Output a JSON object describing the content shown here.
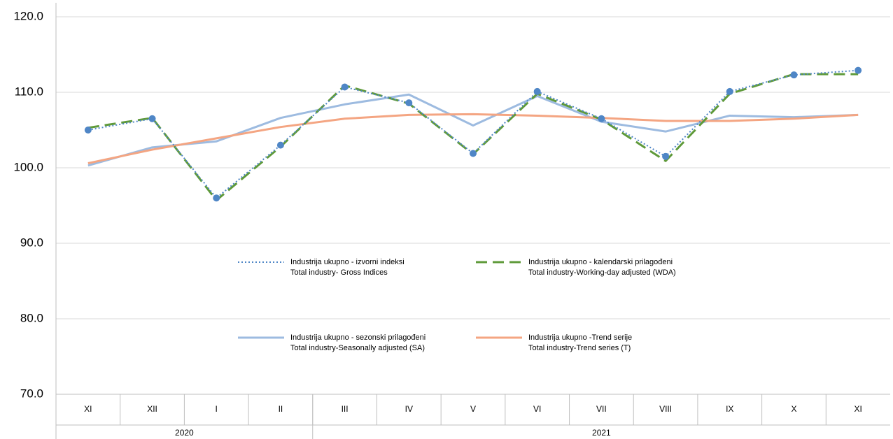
{
  "chart_data": {
    "type": "line",
    "categories": [
      "XI",
      "XII",
      "I",
      "II",
      "III",
      "IV",
      "V",
      "VI",
      "VII",
      "VIII",
      "IX",
      "X",
      "XI"
    ],
    "years": [
      "2020",
      null,
      null,
      null,
      "2021",
      null,
      null,
      null,
      null,
      null,
      null,
      null,
      null
    ],
    "ylim": [
      70,
      120
    ],
    "yticks": [
      {
        "value": 70,
        "label": "70.0"
      },
      {
        "value": 80,
        "label": "80.0"
      },
      {
        "value": 90,
        "label": "90.0"
      },
      {
        "value": 100,
        "label": "100.0"
      },
      {
        "value": 110,
        "label": "110.0"
      },
      {
        "value": 120,
        "label": "120.0"
      }
    ],
    "grid": true,
    "series": [
      {
        "name": "Industrija ukupno - sezonski prilagođeni",
        "name_en": "Total industry-Seasonally adjusted (SA)",
        "color": "#9dbbe0",
        "style": "solid",
        "values": [
          100.3,
          102.7,
          103.5,
          106.6,
          108.4,
          109.7,
          105.6,
          109.5,
          106.1,
          104.8,
          106.9,
          106.7,
          107.0
        ]
      },
      {
        "name": "Industrija ukupno -Trend serije",
        "name_en": "Total industry-Trend series (T)",
        "color": "#f4a582",
        "style": "solid",
        "values": [
          100.6,
          102.4,
          103.9,
          105.4,
          106.5,
          107.0,
          107.1,
          106.9,
          106.6,
          106.2,
          106.2,
          106.5,
          107.0
        ]
      },
      {
        "name": "Industrija ukupno - kalendarski prilagođeni",
        "name_en": "Total industry-Working-day adjusted (WDA)",
        "color": "#5f9a3a",
        "style": "dashed",
        "values": [
          105.3,
          106.6,
          95.7,
          102.8,
          110.9,
          108.5,
          101.8,
          109.8,
          106.4,
          100.9,
          109.8,
          112.4,
          112.4
        ]
      },
      {
        "name": "Industrija ukupno - izvorni indeksi",
        "name_en": "Total industry- Gross Indices",
        "color": "#4f86c6",
        "style": "dotted",
        "values": [
          105.0,
          106.5,
          96.0,
          103.0,
          110.7,
          108.6,
          101.9,
          110.1,
          106.5,
          101.5,
          110.1,
          112.3,
          112.9
        ]
      }
    ],
    "legend_order": [
      3,
      2,
      0,
      1
    ]
  }
}
